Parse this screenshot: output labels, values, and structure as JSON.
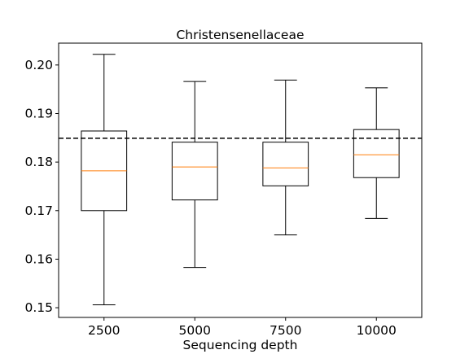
{
  "chart_data": {
    "type": "box",
    "title": "Christensenellaceae",
    "xlabel": "Sequencing depth",
    "ylabel": "",
    "ylim": [
      0.148,
      0.2045
    ],
    "yticks": [
      0.15,
      0.16,
      0.17,
      0.18,
      0.19,
      0.2
    ],
    "ytick_labels": [
      "0.15",
      "0.16",
      "0.17",
      "0.18",
      "0.19",
      "0.20"
    ],
    "categories": [
      "2500",
      "5000",
      "7500",
      "10000"
    ],
    "boxes": [
      {
        "category": "2500",
        "whisker_low": 0.1506,
        "q1": 0.17,
        "median": 0.1782,
        "q3": 0.1864,
        "whisker_high": 0.2022
      },
      {
        "category": "5000",
        "whisker_low": 0.1583,
        "q1": 0.1722,
        "median": 0.179,
        "q3": 0.1841,
        "whisker_high": 0.1966
      },
      {
        "category": "7500",
        "whisker_low": 0.165,
        "q1": 0.1751,
        "median": 0.1788,
        "q3": 0.1841,
        "whisker_high": 0.1969
      },
      {
        "category": "10000",
        "whisker_low": 0.1684,
        "q1": 0.1768,
        "median": 0.1815,
        "q3": 0.1867,
        "whisker_high": 0.1953
      }
    ],
    "reference_line": {
      "value": 0.1849,
      "style": "dashed",
      "color": "#000000"
    },
    "median_color": "#ff7f0e",
    "box_color": "#000000",
    "grid": false,
    "legend": "none"
  }
}
